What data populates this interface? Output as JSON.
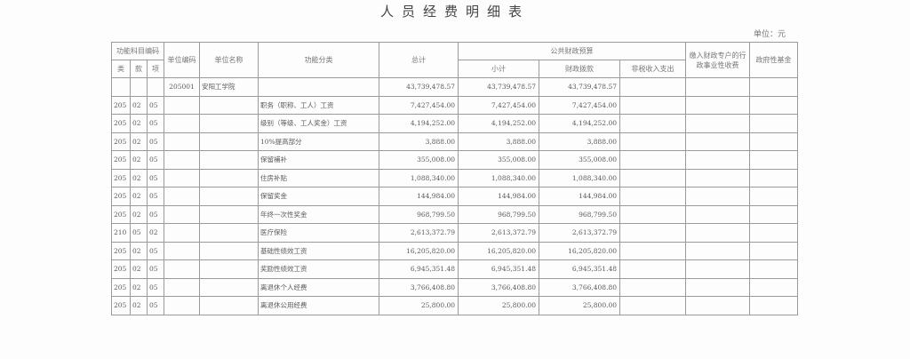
{
  "title": "人员经费明细表",
  "unit_label": "单位：元",
  "headers": {
    "func_code": "功能科目编码",
    "lei": "类",
    "kuan": "款",
    "xiang": "项",
    "unit_code": "单位编码",
    "unit_name": "单位名称",
    "func_class": "功能分类",
    "total": "总计",
    "public_budget": "公共财政预算",
    "subtotal": "小计",
    "appropriation": "财政拨款",
    "non_tax": "非税收入支出",
    "admin_fees": "缴入财政专户的行政事业性收费",
    "gov_fund": "政府性基金"
  },
  "summary_row": {
    "unit_code": "205001",
    "unit_name": "安阳工学院",
    "total": "43,739,478.57",
    "subtotal": "43,739,478.57",
    "appropriation": "43,739,478.57"
  },
  "rows": [
    {
      "lei": "205",
      "kuan": "02",
      "xiang": "05",
      "func_class": "职务（职称、工人）工资",
      "total": "7,427,454.00",
      "subtotal": "7,427,454.00",
      "appropriation": "7,427,454.00"
    },
    {
      "lei": "205",
      "kuan": "02",
      "xiang": "05",
      "func_class": "级别（等级、工人奖金）工资",
      "total": "4,194,252.00",
      "subtotal": "4,194,252.00",
      "appropriation": "4,194,252.00"
    },
    {
      "lei": "205",
      "kuan": "02",
      "xiang": "05",
      "func_class": "10%提高部分",
      "total": "3,888.00",
      "subtotal": "3,888.00",
      "appropriation": "3,888.00"
    },
    {
      "lei": "205",
      "kuan": "02",
      "xiang": "05",
      "func_class": "保留補补",
      "total": "355,008.00",
      "subtotal": "355,008.00",
      "appropriation": "355,008.00"
    },
    {
      "lei": "205",
      "kuan": "02",
      "xiang": "05",
      "func_class": "住房补贴",
      "total": "1,088,340.00",
      "subtotal": "1,088,340.00",
      "appropriation": "1,088,340.00"
    },
    {
      "lei": "205",
      "kuan": "02",
      "xiang": "05",
      "func_class": "保留奖金",
      "total": "144,984.00",
      "subtotal": "144,984.00",
      "appropriation": "144,984.00"
    },
    {
      "lei": "205",
      "kuan": "02",
      "xiang": "05",
      "func_class": "年终一次性奖金",
      "total": "968,799.50",
      "subtotal": "968,799.50",
      "appropriation": "968,799.50"
    },
    {
      "lei": "210",
      "kuan": "05",
      "xiang": "02",
      "func_class": "医疗保险",
      "total": "2,613,372.79",
      "subtotal": "2,613,372.79",
      "appropriation": "2,613,372.79"
    },
    {
      "lei": "205",
      "kuan": "02",
      "xiang": "05",
      "func_class": "基础性绩效工资",
      "total": "16,205,820.00",
      "subtotal": "16,205,820.00",
      "appropriation": "16,205,820.00"
    },
    {
      "lei": "205",
      "kuan": "02",
      "xiang": "05",
      "func_class": "奖励性绩效工资",
      "total": "6,945,351.48",
      "subtotal": "6,945,351.48",
      "appropriation": "6,945,351.48"
    },
    {
      "lei": "205",
      "kuan": "02",
      "xiang": "05",
      "func_class": "离退休个人经费",
      "total": "3,766,408.80",
      "subtotal": "3,766,408.80",
      "appropriation": "3,766,408.80"
    },
    {
      "lei": "205",
      "kuan": "02",
      "xiang": "05",
      "func_class": "离退休公用经费",
      "total": "25,800.00",
      "subtotal": "25,800.00",
      "appropriation": "25,800.00"
    }
  ]
}
